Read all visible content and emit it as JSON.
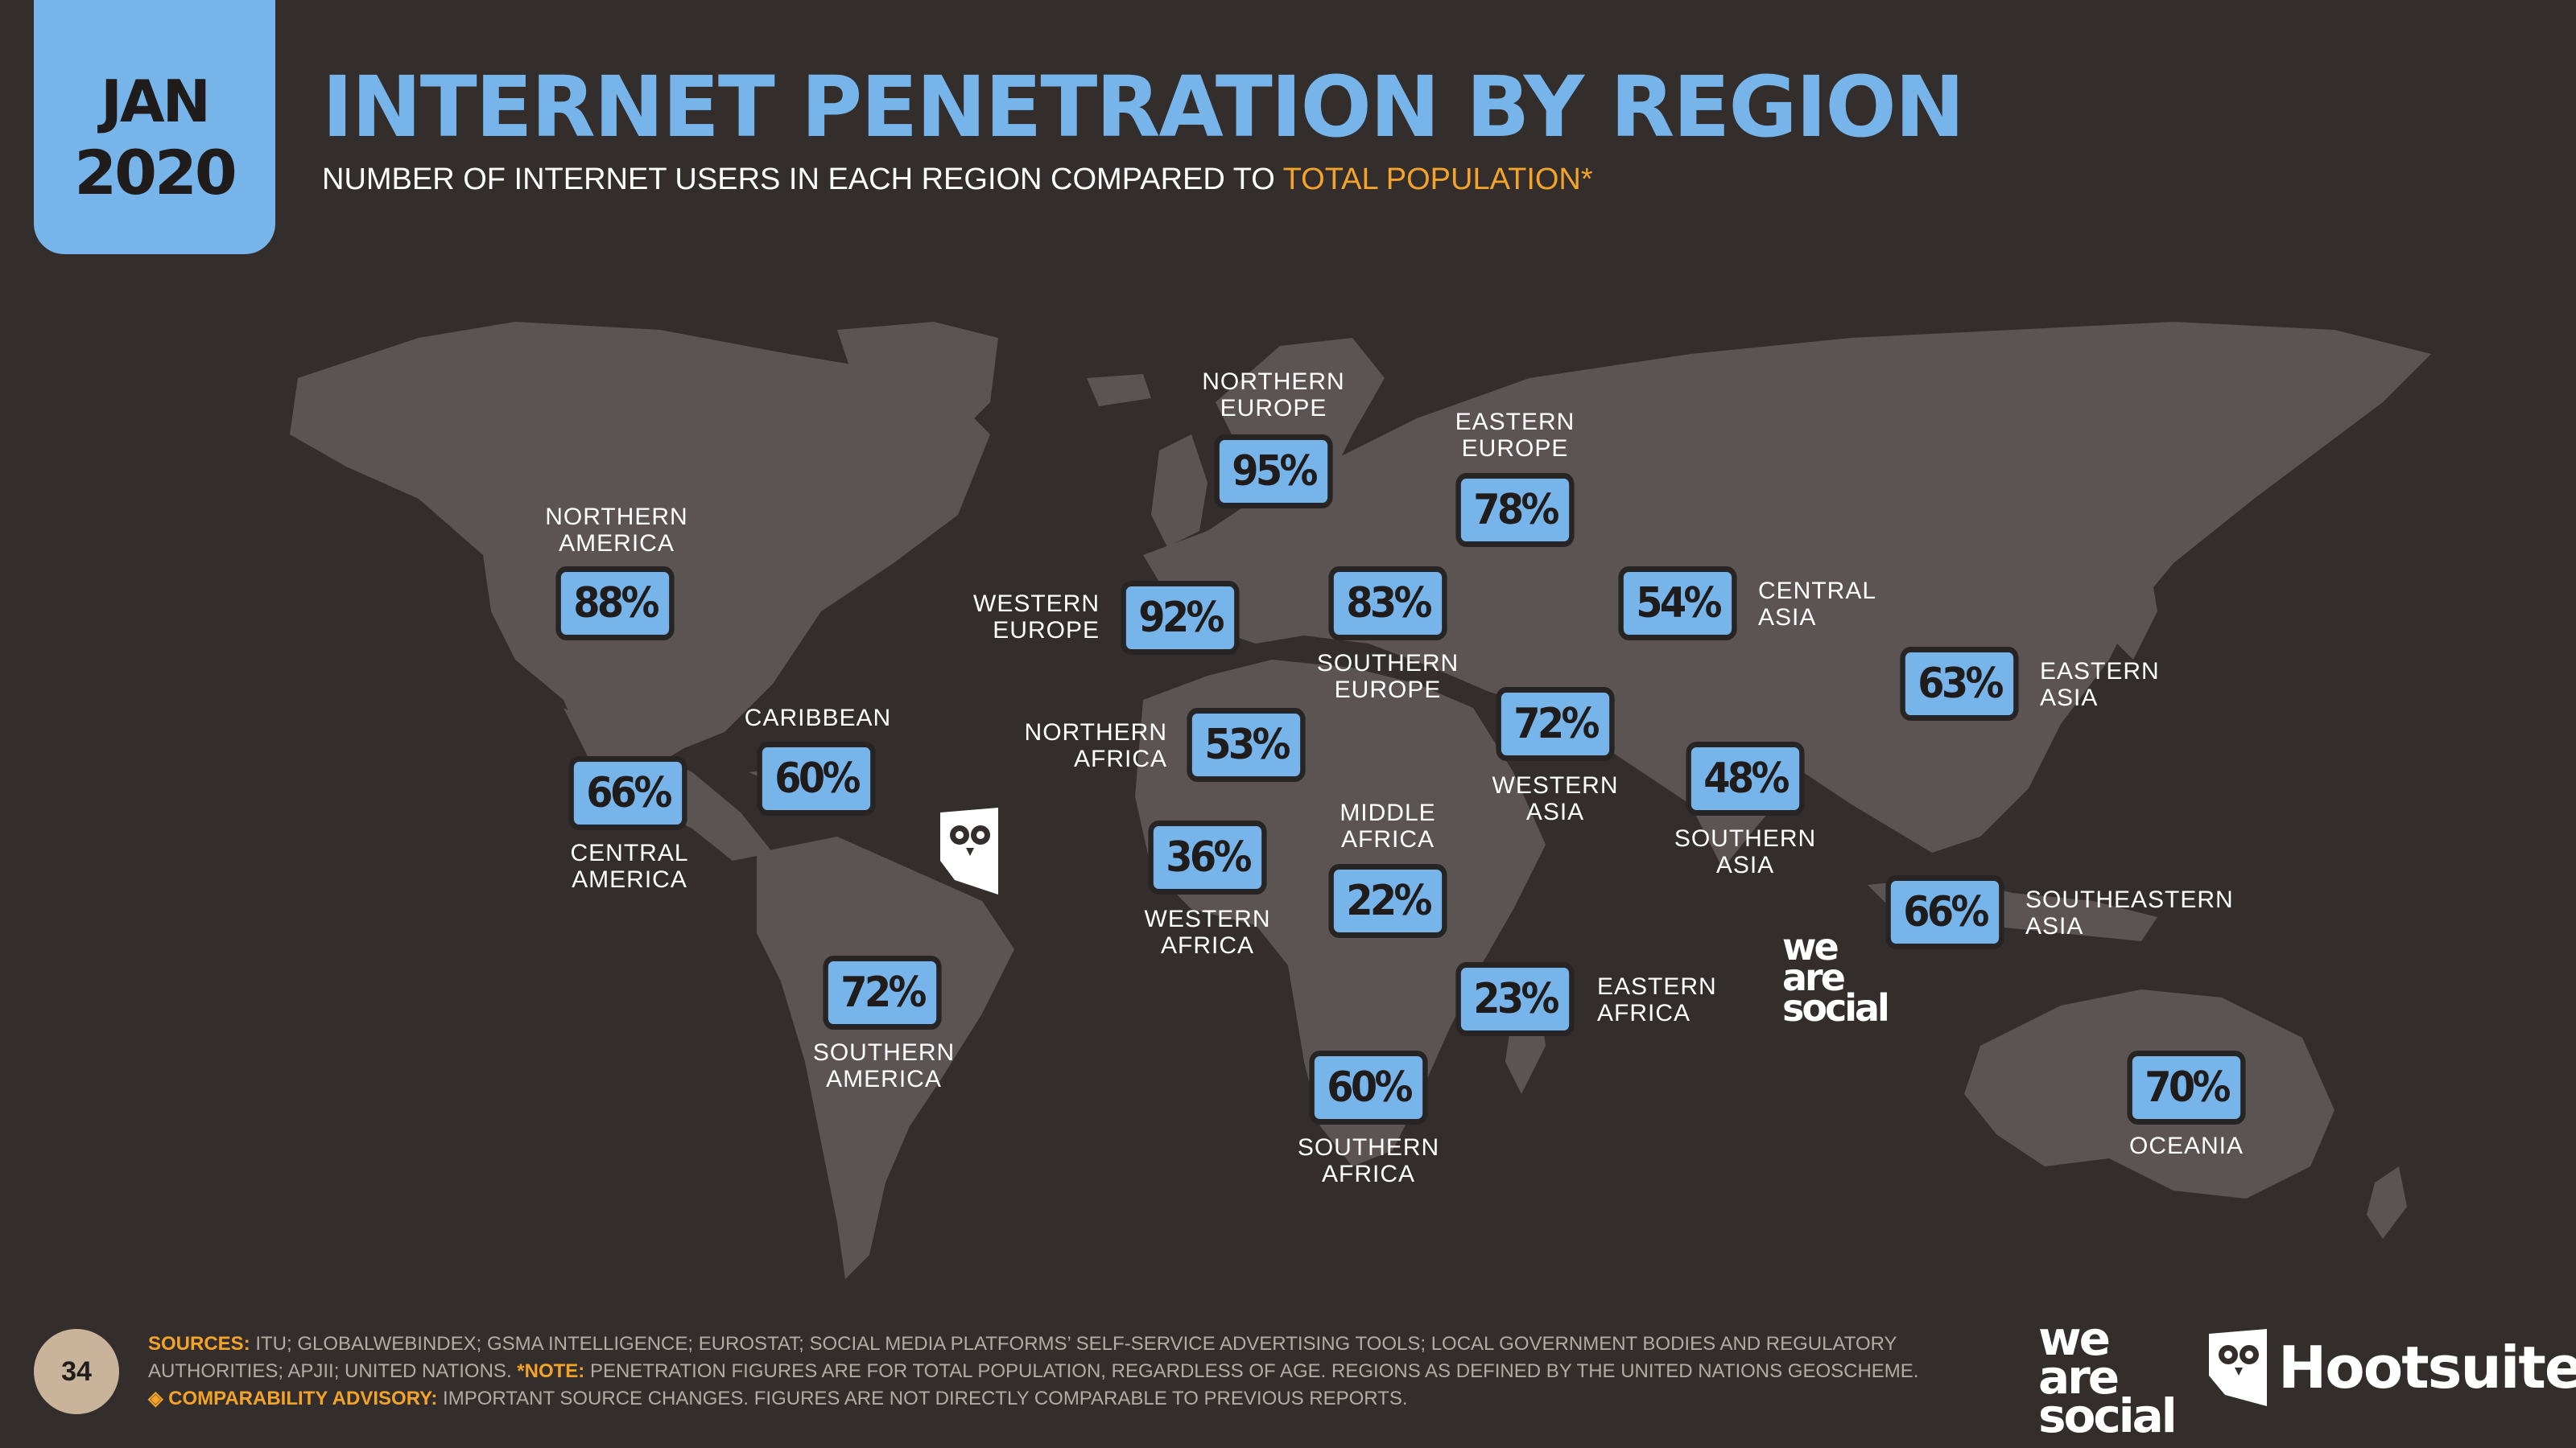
{
  "header": {
    "month": "JAN",
    "year": "2020",
    "title": "INTERNET PENETRATION BY REGION",
    "subtitle_main": "NUMBER OF INTERNET USERS IN EACH REGION COMPARED TO ",
    "subtitle_highlight": "TOTAL POPULATION",
    "subtitle_mark": "*"
  },
  "colors": {
    "background": "#332e2c",
    "land": "#5c5452",
    "accent_blue": "#76b4ea",
    "accent_orange": "#f4a32a"
  },
  "regions": [
    {
      "name": "NORTHERN AMERICA",
      "line1": "NORTHERN",
      "line2": "AMERICA",
      "value": "88%"
    },
    {
      "name": "CENTRAL AMERICA",
      "line1": "CENTRAL",
      "line2": "AMERICA",
      "value": "66%"
    },
    {
      "name": "CARIBBEAN",
      "line1": "CARIBBEAN",
      "line2": "",
      "value": "60%"
    },
    {
      "name": "SOUTHERN AMERICA",
      "line1": "SOUTHERN",
      "line2": "AMERICA",
      "value": "72%"
    },
    {
      "name": "NORTHERN EUROPE",
      "line1": "NORTHERN",
      "line2": "EUROPE",
      "value": "95%"
    },
    {
      "name": "WESTERN EUROPE",
      "line1": "WESTERN",
      "line2": "EUROPE",
      "value": "92%"
    },
    {
      "name": "SOUTHERN EUROPE",
      "line1": "SOUTHERN",
      "line2": "EUROPE",
      "value": "83%"
    },
    {
      "name": "EASTERN EUROPE",
      "line1": "EASTERN",
      "line2": "EUROPE",
      "value": "78%"
    },
    {
      "name": "NORTHERN AFRICA",
      "line1": "NORTHERN",
      "line2": "AFRICA",
      "value": "53%"
    },
    {
      "name": "WESTERN AFRICA",
      "line1": "WESTERN",
      "line2": "AFRICA",
      "value": "36%"
    },
    {
      "name": "MIDDLE AFRICA",
      "line1": "MIDDLE",
      "line2": "AFRICA",
      "value": "22%"
    },
    {
      "name": "EASTERN AFRICA",
      "line1": "EASTERN",
      "line2": "AFRICA",
      "value": "23%"
    },
    {
      "name": "SOUTHERN AFRICA",
      "line1": "SOUTHERN",
      "line2": "AFRICA",
      "value": "60%"
    },
    {
      "name": "WESTERN ASIA",
      "line1": "WESTERN",
      "line2": "ASIA",
      "value": "72%"
    },
    {
      "name": "CENTRAL ASIA",
      "line1": "CENTRAL",
      "line2": "ASIA",
      "value": "54%"
    },
    {
      "name": "SOUTHERN ASIA",
      "line1": "SOUTHERN",
      "line2": "ASIA",
      "value": "48%"
    },
    {
      "name": "EASTERN ASIA",
      "line1": "EASTERN",
      "line2": "ASIA",
      "value": "63%"
    },
    {
      "name": "SOUTHEASTERN ASIA",
      "line1": "SOUTHEASTERN",
      "line2": "ASIA",
      "value": "66%"
    },
    {
      "name": "OCEANIA",
      "line1": "OCEANIA",
      "line2": "",
      "value": "70%"
    }
  ],
  "map_logo": {
    "line1": "we",
    "line2": "are",
    "line3": "social"
  },
  "footer": {
    "page": "34",
    "sources_key": "SOURCES:",
    "sources_text": " ITU; GLOBALWEBINDEX; GSMA INTELLIGENCE; EUROSTAT; SOCIAL MEDIA PLATFORMS’ SELF-SERVICE ADVERTISING TOOLS; LOCAL GOVERNMENT BODIES AND REGULATORY AUTHORITIES; APJII; UNITED NATIONS. ",
    "note_key": "*NOTE:",
    "note_text": " PENETRATION FIGURES ARE FOR TOTAL POPULATION, REGARDLESS OF AGE. REGIONS AS DEFINED BY THE UNITED NATIONS GEOSCHEME.",
    "advisory_key": "◈ COMPARABILITY ADVISORY:",
    "advisory_text": " IMPORTANT SOURCE CHANGES. FIGURES ARE NOT DIRECTLY COMPARABLE TO PREVIOUS REPORTS.",
    "brand_line1": "we",
    "brand_line2": "are",
    "brand_line3": "social",
    "hootsuite": "Hootsuite",
    "hootsuite_mark": "®"
  }
}
